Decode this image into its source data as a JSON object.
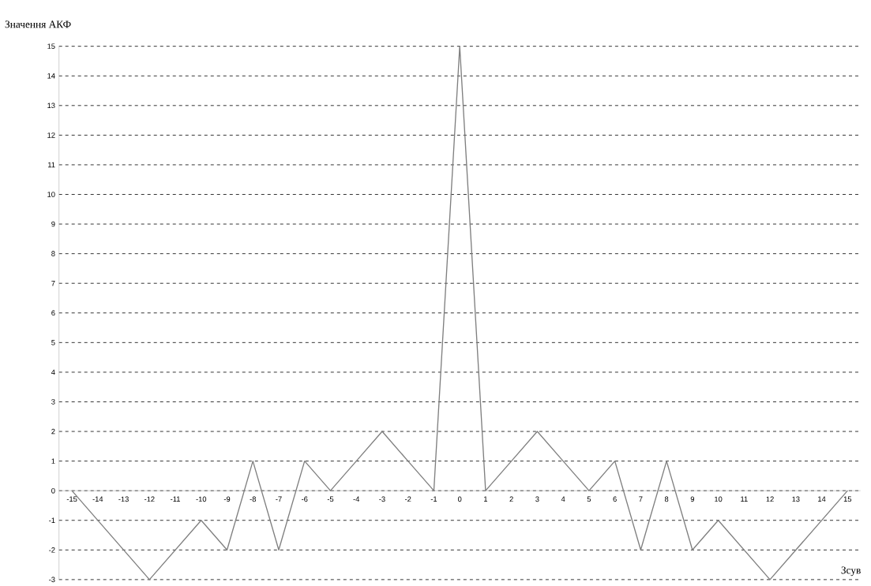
{
  "chart_data": {
    "type": "line",
    "xlabel": "Зсув",
    "ylabel": "Значення АКФ",
    "categories": [
      "-15",
      "-14",
      "-13",
      "-12",
      "-11",
      "-10",
      "-9",
      "-8",
      "-7",
      "-6",
      "-5",
      "-4",
      "-3",
      "-2",
      "-1",
      "0",
      "1",
      "2",
      "3",
      "4",
      "5",
      "6",
      "7",
      "8",
      "9",
      "10",
      "11",
      "12",
      "13",
      "14",
      "15"
    ],
    "values": [
      0,
      -1,
      -2,
      -3,
      -2,
      -1,
      -2,
      1,
      -2,
      1,
      0,
      1,
      2,
      1,
      0,
      15,
      0,
      1,
      2,
      1,
      0,
      1,
      -2,
      1,
      -2,
      -1,
      -2,
      -3,
      -2,
      -1,
      0
    ],
    "color": "#7f7f7f",
    "line_style": "solid",
    "ylim": [
      -3,
      15
    ],
    "yticks": [
      -3,
      -2,
      -1,
      0,
      1,
      2,
      3,
      4,
      5,
      6,
      7,
      8,
      9,
      10,
      11,
      12,
      13,
      14,
      15
    ],
    "grid": "y"
  }
}
